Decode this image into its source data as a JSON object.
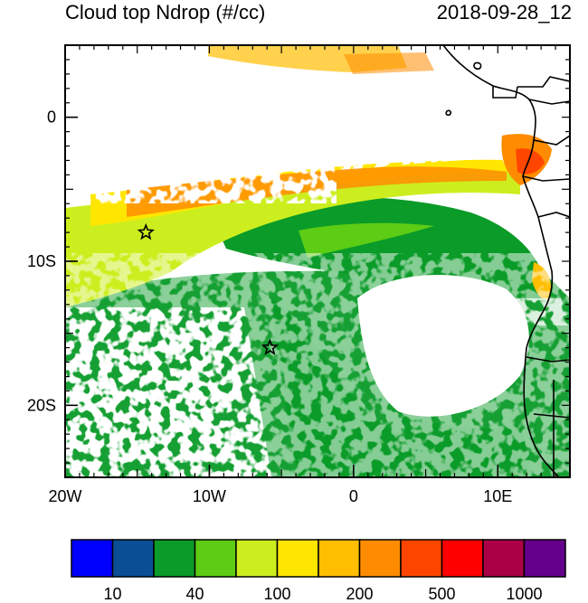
{
  "title": "Cloud top Ndrop (#/cc)",
  "timestamp": "2018-09-28_12",
  "axes": {
    "x_ticks": [
      {
        "lon": -20,
        "label": "20W"
      },
      {
        "lon": -10,
        "label": "10W"
      },
      {
        "lon": 0,
        "label": "0"
      },
      {
        "lon": 10,
        "label": "10E"
      }
    ],
    "y_ticks": [
      {
        "lat": 0,
        "label": "0"
      },
      {
        "lat": -10,
        "label": "10S"
      },
      {
        "lat": -20,
        "label": "20S"
      }
    ],
    "lon_range": [
      -20,
      15
    ],
    "lat_range": [
      -25,
      5
    ]
  },
  "markers": [
    {
      "lon": -14.4,
      "lat": -8.0,
      "symbol": "star"
    },
    {
      "lon": -5.8,
      "lat": -16.0,
      "symbol": "star"
    }
  ],
  "colorbar": {
    "colors": [
      "#0000ff",
      "#0a4f96",
      "#0a9b28",
      "#5ccc14",
      "#cdee1e",
      "#ffe600",
      "#ffbe00",
      "#ff8c00",
      "#ff4600",
      "#ff0000",
      "#aa0046",
      "#64008c"
    ],
    "labels": [
      {
        "index": 1,
        "text": "10"
      },
      {
        "index": 3,
        "text": "40"
      },
      {
        "index": 5,
        "text": "100"
      },
      {
        "index": 7,
        "text": "200"
      },
      {
        "index": 9,
        "text": "500"
      },
      {
        "index": 11,
        "text": "1000"
      }
    ]
  }
}
